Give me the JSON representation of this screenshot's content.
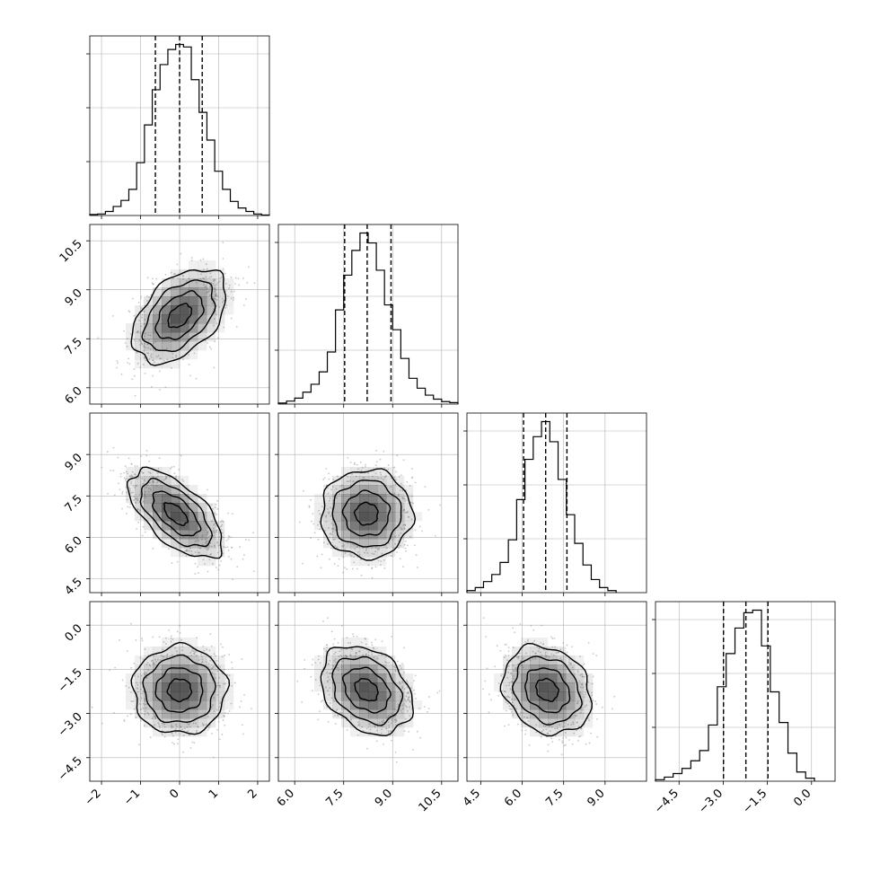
{
  "chart_data": {
    "type": "corner",
    "grid": true,
    "parameters": [
      {
        "axis_range": [
          -2.3,
          2.3
        ],
        "ticks": [
          -2,
          -1,
          0,
          1,
          2
        ],
        "tick_labels": [
          "−2",
          "−1",
          "0",
          "1",
          "2"
        ],
        "histogram": {
          "bin_edges": [
            -2.3,
            -2.1,
            -1.9,
            -1.7,
            -1.5,
            -1.3,
            -1.1,
            -0.9,
            -0.7,
            -0.5,
            -0.3,
            -0.1,
            0.1,
            0.3,
            0.5,
            0.7,
            0.9,
            1.1,
            1.3,
            1.5,
            1.7,
            1.9,
            2.1,
            2.3
          ],
          "counts": [
            2,
            3,
            8,
            18,
            30,
            52,
            105,
            180,
            250,
            300,
            330,
            340,
            335,
            270,
            205,
            150,
            88,
            52,
            28,
            15,
            8,
            3,
            1
          ]
        },
        "quantiles": [
          -0.62,
          0.0,
          0.58
        ]
      },
      {
        "axis_range": [
          5.5,
          11.0
        ],
        "ticks": [
          6.0,
          7.5,
          9.0,
          10.5
        ],
        "tick_labels": [
          "6.0",
          "7.5",
          "9.0",
          "10.5"
        ],
        "histogram": {
          "bin_edges": [
            5.5,
            5.75,
            6.0,
            6.25,
            6.5,
            6.75,
            7.0,
            7.25,
            7.5,
            7.75,
            8.0,
            8.25,
            8.5,
            8.75,
            9.0,
            9.25,
            9.5,
            9.75,
            10.0,
            10.25,
            10.5,
            10.75,
            11.0
          ],
          "counts": [
            2,
            6,
            12,
            24,
            40,
            65,
            105,
            190,
            260,
            310,
            345,
            325,
            270,
            200,
            150,
            92,
            52,
            32,
            18,
            10,
            5,
            3
          ]
        },
        "quantiles": [
          7.53,
          8.22,
          8.95
        ]
      },
      {
        "axis_range": [
          4.0,
          10.5
        ],
        "ticks": [
          4.5,
          6.0,
          7.5,
          9.0
        ],
        "tick_labels": [
          "4.5",
          "6.0",
          "7.5",
          "9.0"
        ],
        "histogram": {
          "bin_edges": [
            4.0,
            4.3,
            4.6,
            4.9,
            5.2,
            5.5,
            5.8,
            6.1,
            6.4,
            6.7,
            7.0,
            7.3,
            7.6,
            7.9,
            8.2,
            8.5,
            8.8,
            9.1,
            9.4
          ],
          "counts": [
            4,
            10,
            22,
            36,
            60,
            105,
            185,
            265,
            310,
            340,
            300,
            225,
            155,
            98,
            55,
            26,
            10,
            4
          ]
        },
        "quantiles": [
          6.05,
          6.85,
          7.62
        ]
      },
      {
        "axis_range": [
          -5.3,
          0.8
        ],
        "ticks": [
          -4.5,
          -3.0,
          -1.5,
          0.0
        ],
        "tick_labels": [
          "−4.5",
          "−3.0",
          "−1.5",
          "0.0"
        ],
        "histogram": {
          "bin_edges": [
            -5.3,
            -5.0,
            -4.7,
            -4.4,
            -4.1,
            -3.8,
            -3.5,
            -3.2,
            -2.9,
            -2.6,
            -2.3,
            -2.0,
            -1.7,
            -1.4,
            -1.1,
            -0.8,
            -0.5,
            -0.2,
            0.1
          ],
          "counts": [
            3,
            8,
            15,
            25,
            40,
            60,
            110,
            185,
            250,
            300,
            330,
            335,
            265,
            175,
            115,
            55,
            18,
            6
          ]
        },
        "quantiles": [
          -2.99,
          -2.23,
          -1.48
        ]
      }
    ],
    "pairs": [
      {
        "x_param": 0,
        "y_param": 1,
        "center": [
          0.0,
          8.2
        ],
        "sigma": [
          0.6,
          0.72
        ],
        "correlation": 0.45
      },
      {
        "x_param": 0,
        "y_param": 2,
        "center": [
          -0.1,
          6.85
        ],
        "sigma": [
          0.6,
          0.8
        ],
        "correlation": -0.62
      },
      {
        "x_param": 1,
        "y_param": 2,
        "center": [
          8.2,
          6.85
        ],
        "sigma": [
          0.7,
          0.8
        ],
        "correlation": 0.0
      },
      {
        "x_param": 0,
        "y_param": 3,
        "center": [
          0.0,
          -2.2
        ],
        "sigma": [
          0.6,
          0.75
        ],
        "correlation": 0.0
      },
      {
        "x_param": 1,
        "y_param": 3,
        "center": [
          8.2,
          -2.2
        ],
        "sigma": [
          0.7,
          0.75
        ],
        "correlation": -0.3
      },
      {
        "x_param": 2,
        "y_param": 3,
        "center": [
          6.9,
          -2.2
        ],
        "sigma": [
          0.8,
          0.75
        ],
        "correlation": -0.2
      }
    ],
    "contour_levels_sigma": [
      0.5,
      1.0,
      1.5,
      2.0
    ],
    "colors": {
      "histogram": "#000000",
      "contour": "#000000",
      "density": "#333333",
      "points": "#9a9a9a",
      "grid": "#b0b0b0",
      "frame": "#000000"
    }
  }
}
